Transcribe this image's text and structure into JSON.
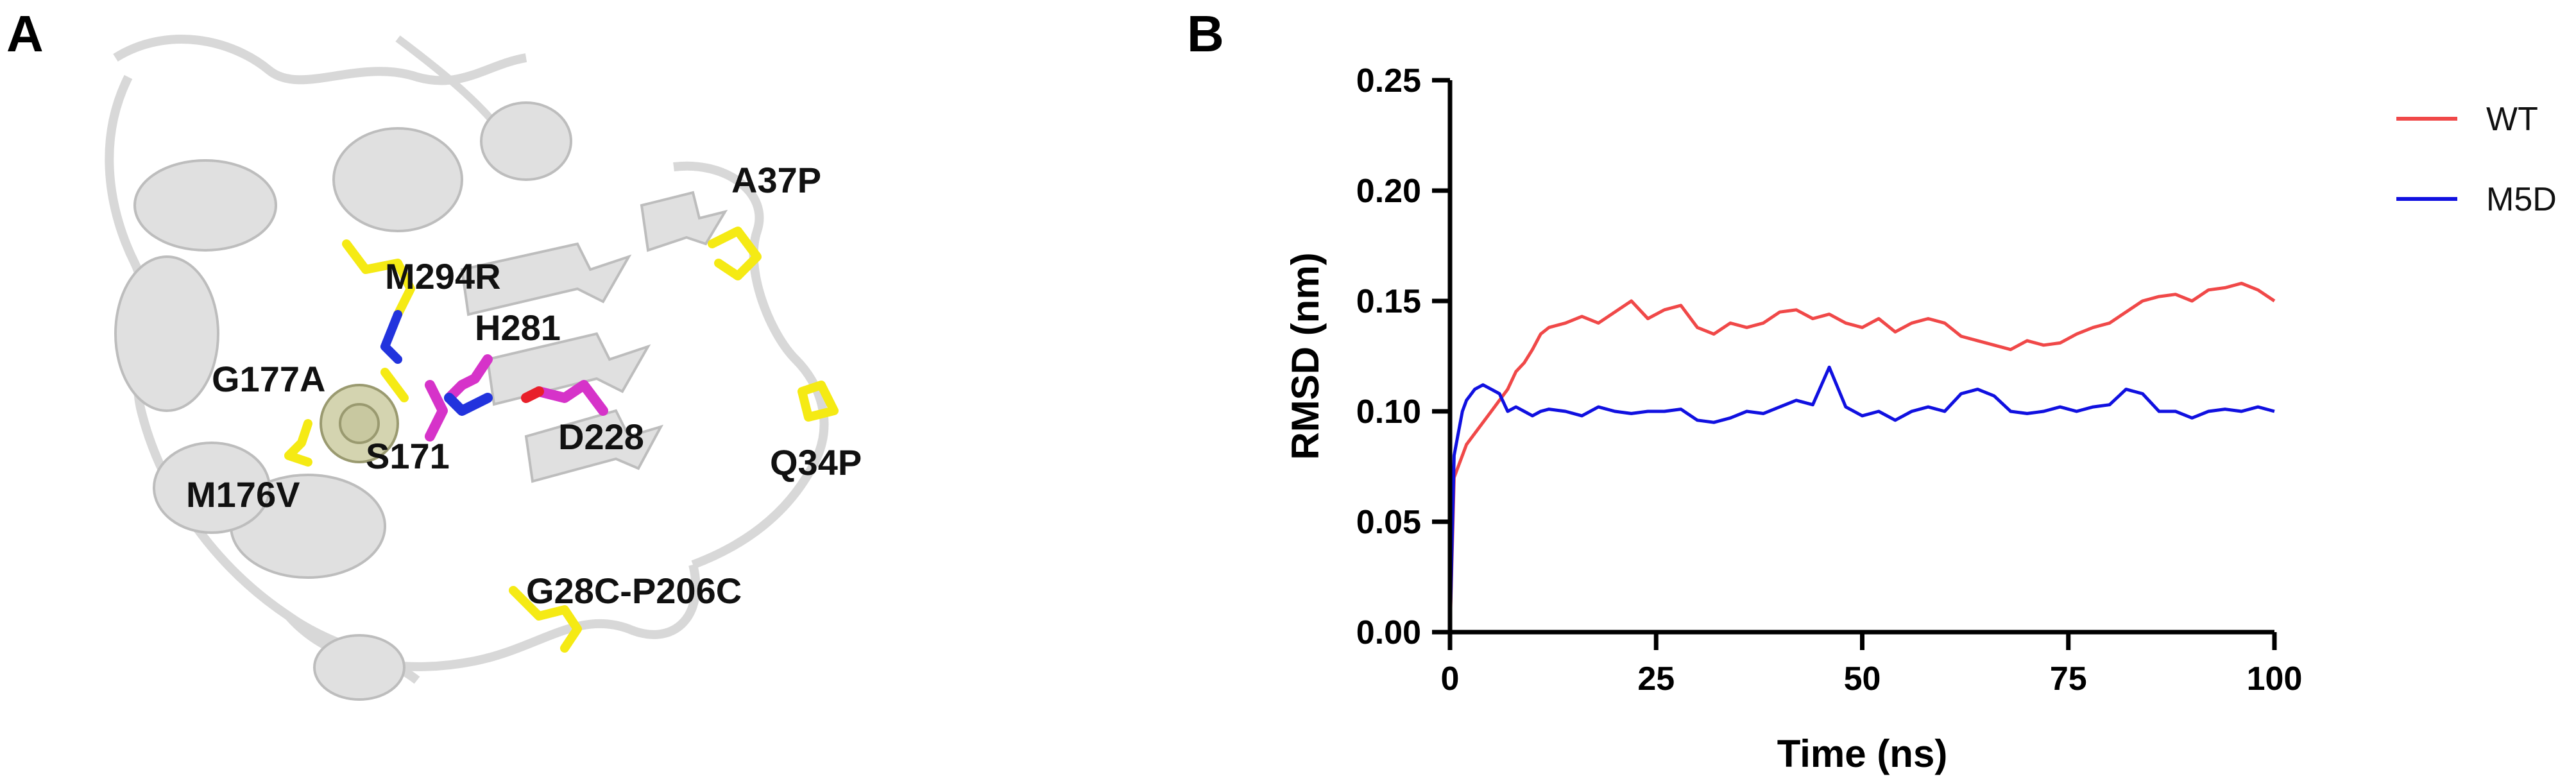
{
  "panel_a": {
    "letter": "A",
    "labels": [
      {
        "id": "m294r",
        "text": "M294R"
      },
      {
        "id": "a37p",
        "text": "A37P"
      },
      {
        "id": "h281",
        "text": "H281"
      },
      {
        "id": "g177a",
        "text": "G177A"
      },
      {
        "id": "s171",
        "text": "S171"
      },
      {
        "id": "d228",
        "text": "D228"
      },
      {
        "id": "m176v",
        "text": "M176V"
      },
      {
        "id": "q34p",
        "text": "Q34P"
      },
      {
        "id": "g28c-p206c",
        "text": "G28C-P206C"
      }
    ],
    "colors": {
      "cartoon": "#dcdcdc",
      "mutation": "#f5ea14",
      "catalytic": "#d633c9",
      "nitrogen": "#2233dd",
      "oxygen": "#e8202a"
    }
  },
  "panel_b": {
    "letter": "B",
    "colors": {
      "WT": "#f04848",
      "M5D": "#1010e0"
    }
  },
  "chart_data": {
    "type": "line",
    "title": "",
    "xlabel": "Time (ns)",
    "ylabel": "RMSD (nm)",
    "xlim": [
      0,
      100
    ],
    "ylim": [
      0,
      0.25
    ],
    "xticks": [
      0,
      25,
      50,
      75,
      100
    ],
    "yticks": [
      0.0,
      0.05,
      0.1,
      0.15,
      0.2,
      0.25
    ],
    "xtick_labels": [
      "0",
      "25",
      "50",
      "75",
      "100"
    ],
    "ytick_labels": [
      "0.00",
      "0.05",
      "0.10",
      "0.15",
      "0.20",
      "0.25"
    ],
    "grid": false,
    "legend_position": "top-right",
    "x": [
      0,
      0.5,
      1,
      1.5,
      2,
      3,
      4,
      5,
      6,
      7,
      8,
      9,
      10,
      11,
      12,
      14,
      16,
      18,
      20,
      22,
      24,
      26,
      28,
      30,
      32,
      34,
      36,
      38,
      40,
      42,
      44,
      46,
      48,
      50,
      52,
      54,
      56,
      58,
      60,
      62,
      64,
      66,
      68,
      70,
      72,
      74,
      76,
      78,
      80,
      82,
      84,
      86,
      88,
      90,
      92,
      94,
      96,
      98,
      100
    ],
    "series": [
      {
        "name": "WT",
        "values": [
          0.0,
          0.07,
          0.075,
          0.08,
          0.085,
          0.09,
          0.095,
          0.1,
          0.105,
          0.11,
          0.118,
          0.122,
          0.128,
          0.135,
          0.138,
          0.14,
          0.143,
          0.14,
          0.145,
          0.15,
          0.142,
          0.146,
          0.148,
          0.138,
          0.135,
          0.14,
          0.138,
          0.14,
          0.145,
          0.146,
          0.142,
          0.144,
          0.14,
          0.138,
          0.142,
          0.136,
          0.14,
          0.142,
          0.14,
          0.134,
          0.132,
          0.13,
          0.128,
          0.132,
          0.13,
          0.131,
          0.135,
          0.138,
          0.14,
          0.145,
          0.15,
          0.152,
          0.153,
          0.15,
          0.155,
          0.156,
          0.158,
          0.155,
          0.15
        ]
      },
      {
        "name": "M5D",
        "values": [
          0.0,
          0.08,
          0.09,
          0.1,
          0.105,
          0.11,
          0.112,
          0.11,
          0.108,
          0.1,
          0.102,
          0.1,
          0.098,
          0.1,
          0.101,
          0.1,
          0.098,
          0.102,
          0.1,
          0.099,
          0.1,
          0.1,
          0.101,
          0.096,
          0.095,
          0.097,
          0.1,
          0.099,
          0.102,
          0.105,
          0.103,
          0.12,
          0.102,
          0.098,
          0.1,
          0.096,
          0.1,
          0.102,
          0.1,
          0.108,
          0.11,
          0.107,
          0.1,
          0.099,
          0.1,
          0.102,
          0.1,
          0.102,
          0.103,
          0.11,
          0.108,
          0.1,
          0.1,
          0.097,
          0.1,
          0.101,
          0.1,
          0.102,
          0.1
        ]
      }
    ]
  }
}
